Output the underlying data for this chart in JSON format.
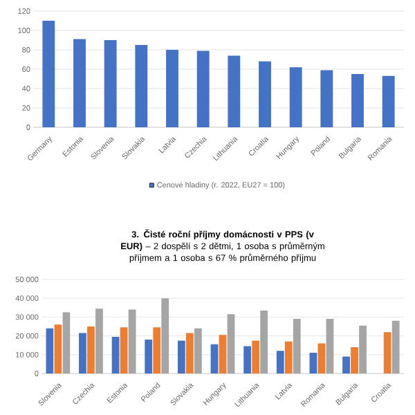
{
  "chart_data": [
    {
      "type": "bar",
      "categories": [
        "Germany",
        "Estonia",
        "Slovenia",
        "Slovakia",
        "Latvia",
        "Czechia",
        "Lithuania",
        "Croatia",
        "Hungary",
        "Poland",
        "Bulgaria",
        "Romania"
      ],
      "series": [
        {
          "name": "Cenové hladiny (r. 2022, EU27 = 100)",
          "color": "#4472c4",
          "values": [
            110,
            91,
            90,
            85,
            80,
            79,
            74,
            68,
            62,
            59,
            55,
            53
          ]
        }
      ],
      "ylim": [
        0,
        120
      ],
      "yticks": [
        0,
        20,
        40,
        60,
        80,
        100,
        120
      ],
      "grid": "y",
      "legend": "bottom"
    },
    {
      "type": "bar",
      "title": "**3. Čisté roční příjmy domácnosti v PPS (v EUR)** – 2 dospělí s 2 dětmi, 1 osoba s průměrným příjmem a 1 osoba s 67 % průměrného příjmu",
      "categories": [
        "Slovenia",
        "Czechia",
        "Estonia",
        "Poland",
        "Slovakia",
        "Hungary",
        "Lithuania",
        "Latvia",
        "Romania",
        "Bulgaria",
        "Croatia"
      ],
      "series": [
        {
          "color": "#4472c4",
          "values": [
            24000,
            21500,
            19500,
            18000,
            17500,
            15500,
            14500,
            12000,
            11000,
            9000,
            null
          ]
        },
        {
          "color": "#ed7d31",
          "values": [
            26000,
            25000,
            24500,
            24500,
            21500,
            20500,
            17500,
            17000,
            16000,
            14000,
            22000
          ]
        },
        {
          "color": "#a5a5a5",
          "values": [
            32500,
            34500,
            34000,
            40000,
            24000,
            31500,
            33500,
            29000,
            29000,
            25500,
            28000
          ]
        }
      ],
      "ylim": [
        0,
        50000
      ],
      "yticks": [
        0,
        {
          "value": 10000,
          "label": "10 000"
        },
        {
          "value": 20000,
          "label": "20 000"
        },
        {
          "value": 30000,
          "label": "30 000"
        },
        {
          "value": 40000,
          "label": "40 000"
        },
        {
          "value": 50000,
          "label": "50 000"
        }
      ],
      "grid": "y",
      "legend": false
    }
  ]
}
